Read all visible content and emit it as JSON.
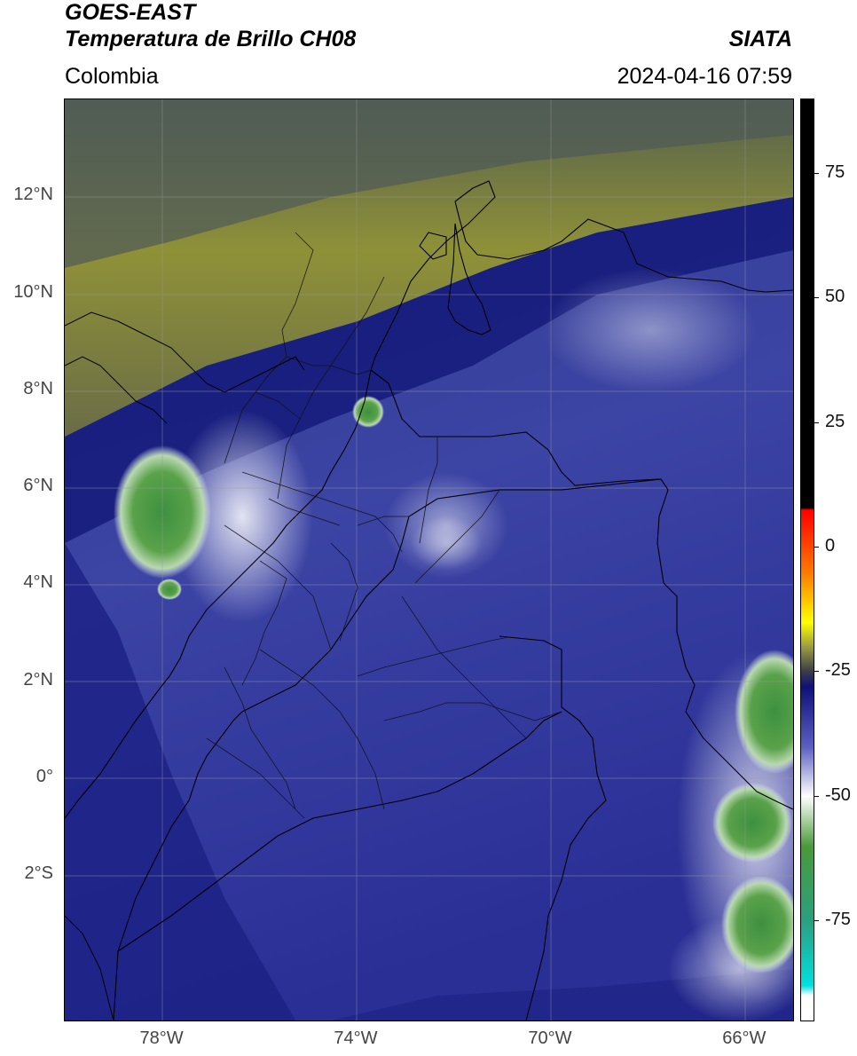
{
  "header": {
    "satellite": "GOES-EAST",
    "product": "Temperatura de Brillo CH08",
    "region": "Colombia",
    "organization": "SIATA",
    "datetime": "2024-04-16 07:59"
  },
  "map": {
    "lat_range": [
      -5.0,
      14.0
    ],
    "lon_range": [
      -80.0,
      -65.0
    ],
    "gridlines": true,
    "y_ticks": [
      {
        "value": 12,
        "label": "12°N"
      },
      {
        "value": 10,
        "label": "10°N"
      },
      {
        "value": 8,
        "label": "8°N"
      },
      {
        "value": 6,
        "label": "6°N"
      },
      {
        "value": 4,
        "label": "4°N"
      },
      {
        "value": 2,
        "label": "2°N"
      },
      {
        "value": 0,
        "label": "0°"
      },
      {
        "value": -2,
        "label": "2°S"
      }
    ],
    "x_ticks": [
      {
        "value": -78,
        "label": "78°W"
      },
      {
        "value": -74,
        "label": "74°W"
      },
      {
        "value": -70,
        "label": "70°W"
      },
      {
        "value": -66,
        "label": "66°W"
      }
    ],
    "colors": {
      "cold_blue": "#1a1f86",
      "mid_blue": "#4a52b0",
      "light_band": "#c8cce8",
      "dry_olive": "#8d8f3a",
      "dry_dark": "#4e5a4e",
      "deep_green": "#4c9a3c",
      "border": "#000000"
    }
  },
  "colorbar": {
    "range": [
      -95,
      90
    ],
    "ticks": [
      {
        "value": 75,
        "label": "75"
      },
      {
        "value": 50,
        "label": "50"
      },
      {
        "value": 25,
        "label": "25"
      },
      {
        "value": 0,
        "label": "0"
      },
      {
        "value": -25,
        "label": "-25"
      },
      {
        "value": -50,
        "label": "-50"
      },
      {
        "value": -75,
        "label": "-75"
      }
    ],
    "stops": [
      {
        "value": 90,
        "color": "#000000"
      },
      {
        "value": 8,
        "color": "#000000"
      },
      {
        "value": 7.5,
        "color": "#ff0000"
      },
      {
        "value": -5,
        "color": "#ff7a00"
      },
      {
        "value": -15,
        "color": "#ffff00"
      },
      {
        "value": -20,
        "color": "#9a9a40"
      },
      {
        "value": -25,
        "color": "#3a3a4a"
      },
      {
        "value": -28,
        "color": "#10107a"
      },
      {
        "value": -40,
        "color": "#5a5fc0"
      },
      {
        "value": -50,
        "color": "#ffffff"
      },
      {
        "value": -60,
        "color": "#4a9a3a"
      },
      {
        "value": -75,
        "color": "#2aa080"
      },
      {
        "value": -88,
        "color": "#00e0e0"
      },
      {
        "value": -90,
        "color": "#ffffff"
      },
      {
        "value": -95,
        "color": "#ffffff"
      }
    ]
  }
}
